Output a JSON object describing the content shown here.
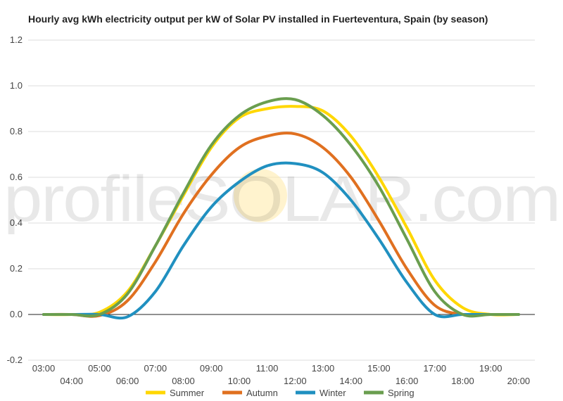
{
  "chart_data": {
    "type": "line",
    "title": "Hourly avg kWh electricity output per kW of Solar PV installed in Fuerteventura, Spain (by season)",
    "xlabel": "",
    "ylabel": "",
    "ylim": [
      -0.2,
      1.2
    ],
    "yticks": [
      "-0.2",
      "0.0",
      "0.2",
      "0.4",
      "0.6",
      "0.8",
      "1.0",
      "1.2"
    ],
    "x": [
      "03:00",
      "04:00",
      "05:00",
      "06:00",
      "07:00",
      "08:00",
      "09:00",
      "10:00",
      "11:00",
      "12:00",
      "13:00",
      "14:00",
      "15:00",
      "16:00",
      "17:00",
      "18:00",
      "19:00",
      "20:00"
    ],
    "grid": true,
    "legend_position": "bottom",
    "series": [
      {
        "name": "Summer",
        "color": "#FFD700",
        "values": [
          0.0,
          0.0,
          0.01,
          0.1,
          0.3,
          0.52,
          0.73,
          0.86,
          0.9,
          0.91,
          0.89,
          0.78,
          0.6,
          0.38,
          0.15,
          0.03,
          0.0,
          0.0
        ]
      },
      {
        "name": "Autumn",
        "color": "#E07020",
        "values": [
          0.0,
          0.0,
          -0.005,
          0.06,
          0.23,
          0.44,
          0.61,
          0.73,
          0.78,
          0.79,
          0.73,
          0.6,
          0.41,
          0.2,
          0.04,
          0.0,
          0.0,
          0.0
        ]
      },
      {
        "name": "Winter",
        "color": "#2090C0",
        "values": [
          0.0,
          0.0,
          0.0,
          -0.01,
          0.1,
          0.3,
          0.47,
          0.58,
          0.65,
          0.66,
          0.62,
          0.5,
          0.33,
          0.14,
          0.0,
          0.0,
          0.0,
          0.0
        ]
      },
      {
        "name": "Spring",
        "color": "#6A9E4F",
        "values": [
          0.0,
          0.0,
          0.0,
          0.09,
          0.3,
          0.53,
          0.74,
          0.87,
          0.93,
          0.94,
          0.87,
          0.74,
          0.56,
          0.33,
          0.1,
          0.0,
          0.0,
          0.0
        ]
      }
    ]
  },
  "watermark": {
    "text": "profileSOLAR.com",
    "sun_color": "#FFE9A6"
  }
}
